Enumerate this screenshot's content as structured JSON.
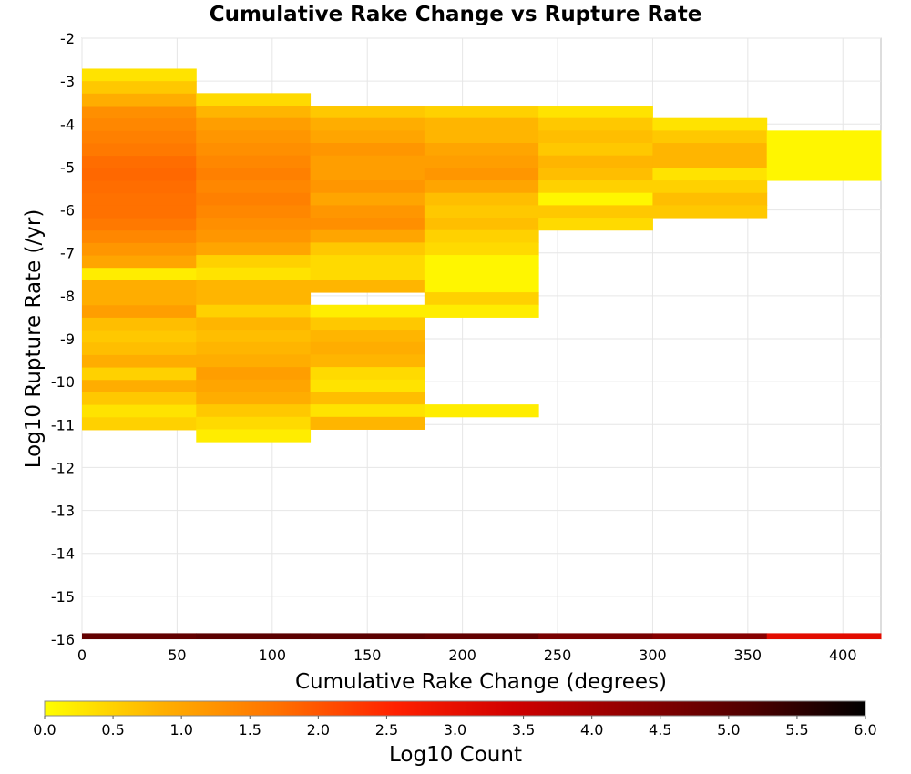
{
  "chart_data": {
    "type": "heatmap",
    "title": "Cumulative Rake Change vs Rupture Rate",
    "xlabel": "Cumulative Rake Change (degrees)",
    "ylabel": "Log10 Rupture Rate (/yr)",
    "xlim": [
      0,
      420
    ],
    "ylim": [
      -16,
      -2
    ],
    "x_ticks": [
      0,
      50,
      100,
      150,
      200,
      250,
      300,
      350,
      400
    ],
    "y_ticks": [
      -2,
      -3,
      -4,
      -5,
      -6,
      -7,
      -8,
      -9,
      -10,
      -11,
      -12,
      -13,
      -14,
      -15,
      -16
    ],
    "grid": true,
    "x_bin_width": 60,
    "y_bin_height": 0.29,
    "colorbar": {
      "label": "Log10 Count",
      "range": [
        0,
        6
      ],
      "ticks": [
        "0.0",
        "0.5",
        "1.0",
        "1.5",
        "2.0",
        "2.5",
        "3.0",
        "3.5",
        "4.0",
        "4.5",
        "5.0",
        "5.5",
        "6.0"
      ],
      "colors": [
        "#ffff00",
        "#ffb000",
        "#ff7000",
        "#ff2000",
        "#d00000",
        "#900000",
        "#500000",
        "#000000"
      ]
    },
    "columns": [
      {
        "x": 0,
        "cells": [
          {
            "y": -2.71,
            "v": 0.3
          },
          {
            "y": -3.0,
            "v": 0.6
          },
          {
            "y": -3.29,
            "v": 0.9
          },
          {
            "y": -3.58,
            "v": 1.3
          },
          {
            "y": -3.87,
            "v": 1.4
          },
          {
            "y": -4.16,
            "v": 1.5
          },
          {
            "y": -4.45,
            "v": 1.6
          },
          {
            "y": -4.74,
            "v": 1.75
          },
          {
            "y": -5.03,
            "v": 1.8
          },
          {
            "y": -5.32,
            "v": 1.75
          },
          {
            "y": -5.61,
            "v": 1.7
          },
          {
            "y": -5.9,
            "v": 1.7
          },
          {
            "y": -6.19,
            "v": 1.6
          },
          {
            "y": -6.48,
            "v": 1.4
          },
          {
            "y": -6.77,
            "v": 1.2
          },
          {
            "y": -7.06,
            "v": 1.0
          },
          {
            "y": -7.35,
            "v": 0.2
          },
          {
            "y": -7.64,
            "v": 0.9
          },
          {
            "y": -7.93,
            "v": 0.9
          },
          {
            "y": -8.22,
            "v": 1.1
          },
          {
            "y": -8.51,
            "v": 0.7
          },
          {
            "y": -8.8,
            "v": 0.6
          },
          {
            "y": -9.09,
            "v": 0.7
          },
          {
            "y": -9.38,
            "v": 0.9
          },
          {
            "y": -9.67,
            "v": 0.5
          },
          {
            "y": -9.96,
            "v": 0.9
          },
          {
            "y": -10.25,
            "v": 0.6
          },
          {
            "y": -10.54,
            "v": 0.3
          },
          {
            "y": -10.83,
            "v": 0.5
          }
        ]
      },
      {
        "x": 60,
        "cells": [
          {
            "y": -3.28,
            "v": 0.4
          },
          {
            "y": -3.57,
            "v": 0.8
          },
          {
            "y": -3.86,
            "v": 1.1
          },
          {
            "y": -4.15,
            "v": 1.2
          },
          {
            "y": -4.44,
            "v": 1.3
          },
          {
            "y": -4.73,
            "v": 1.4
          },
          {
            "y": -5.02,
            "v": 1.5
          },
          {
            "y": -5.31,
            "v": 1.4
          },
          {
            "y": -5.6,
            "v": 1.5
          },
          {
            "y": -5.89,
            "v": 1.4
          },
          {
            "y": -6.18,
            "v": 1.3
          },
          {
            "y": -6.47,
            "v": 1.2
          },
          {
            "y": -6.76,
            "v": 1.0
          },
          {
            "y": -7.05,
            "v": 0.5
          },
          {
            "y": -7.34,
            "v": 0.3
          },
          {
            "y": -7.63,
            "v": 0.8
          },
          {
            "y": -7.92,
            "v": 0.8
          },
          {
            "y": -8.21,
            "v": 0.5
          },
          {
            "y": -8.5,
            "v": 0.8
          },
          {
            "y": -8.79,
            "v": 0.7
          },
          {
            "y": -9.08,
            "v": 0.8
          },
          {
            "y": -9.37,
            "v": 0.9
          },
          {
            "y": -9.66,
            "v": 1.1
          },
          {
            "y": -9.95,
            "v": 1.0
          },
          {
            "y": -10.24,
            "v": 0.9
          },
          {
            "y": -10.53,
            "v": 0.6
          },
          {
            "y": -10.82,
            "v": 0.4
          },
          {
            "y": -11.11,
            "v": 0.2
          }
        ]
      },
      {
        "x": 120,
        "cells": [
          {
            "y": -3.57,
            "v": 0.6
          },
          {
            "y": -3.86,
            "v": 0.9
          },
          {
            "y": -4.15,
            "v": 1.0
          },
          {
            "y": -4.44,
            "v": 1.2
          },
          {
            "y": -4.73,
            "v": 1.1
          },
          {
            "y": -5.02,
            "v": 1.1
          },
          {
            "y": -5.31,
            "v": 1.2
          },
          {
            "y": -5.6,
            "v": 1.0
          },
          {
            "y": -5.89,
            "v": 1.2
          },
          {
            "y": -6.18,
            "v": 1.3
          },
          {
            "y": -6.47,
            "v": 1.0
          },
          {
            "y": -6.76,
            "v": 0.6
          },
          {
            "y": -7.05,
            "v": 0.4
          },
          {
            "y": -7.34,
            "v": 0.4
          },
          {
            "y": -7.63,
            "v": 0.8
          },
          {
            "y": -8.21,
            "v": 0.2
          },
          {
            "y": -8.5,
            "v": 0.6
          },
          {
            "y": -8.79,
            "v": 0.8
          },
          {
            "y": -9.08,
            "v": 0.9
          },
          {
            "y": -9.37,
            "v": 0.8
          },
          {
            "y": -9.66,
            "v": 0.4
          },
          {
            "y": -9.95,
            "v": 0.3
          },
          {
            "y": -10.24,
            "v": 0.7
          },
          {
            "y": -10.53,
            "v": 0.3
          },
          {
            "y": -10.82,
            "v": 0.8
          }
        ]
      },
      {
        "x": 180,
        "cells": [
          {
            "y": -3.57,
            "v": 0.5
          },
          {
            "y": -3.86,
            "v": 0.8
          },
          {
            "y": -4.15,
            "v": 0.8
          },
          {
            "y": -4.44,
            "v": 1.0
          },
          {
            "y": -4.73,
            "v": 1.1
          },
          {
            "y": -5.02,
            "v": 1.2
          },
          {
            "y": -5.31,
            "v": 1.0
          },
          {
            "y": -5.6,
            "v": 0.7
          },
          {
            "y": -5.89,
            "v": 0.6
          },
          {
            "y": -6.18,
            "v": 0.7
          },
          {
            "y": -6.47,
            "v": 0.5
          },
          {
            "y": -6.76,
            "v": 0.4
          },
          {
            "y": -7.05,
            "v": 0.1
          },
          {
            "y": -7.34,
            "v": 0.1
          },
          {
            "y": -7.63,
            "v": 0.1
          },
          {
            "y": -7.92,
            "v": 0.5
          },
          {
            "y": -8.21,
            "v": 0.2
          },
          {
            "y": -10.53,
            "v": 0.2
          }
        ]
      },
      {
        "x": 240,
        "cells": [
          {
            "y": -3.57,
            "v": 0.3
          },
          {
            "y": -3.86,
            "v": 0.6
          },
          {
            "y": -4.15,
            "v": 0.7
          },
          {
            "y": -4.44,
            "v": 0.6
          },
          {
            "y": -4.73,
            "v": 0.8
          },
          {
            "y": -5.02,
            "v": 0.7
          },
          {
            "y": -5.31,
            "v": 0.5
          },
          {
            "y": -5.6,
            "v": 0.1
          },
          {
            "y": -5.89,
            "v": 0.6
          },
          {
            "y": -6.18,
            "v": 0.4
          }
        ]
      },
      {
        "x": 300,
        "cells": [
          {
            "y": -3.86,
            "v": 0.3
          },
          {
            "y": -4.15,
            "v": 0.6
          },
          {
            "y": -4.44,
            "v": 0.8
          },
          {
            "y": -4.73,
            "v": 0.8
          },
          {
            "y": -5.02,
            "v": 0.3
          },
          {
            "y": -5.31,
            "v": 0.5
          },
          {
            "y": -5.6,
            "v": 0.7
          },
          {
            "y": -5.89,
            "v": 0.6
          }
        ]
      },
      {
        "x": 360,
        "cells": [
          {
            "y": -4.15,
            "v": 0.1
          },
          {
            "y": -4.44,
            "v": 0.1
          },
          {
            "y": -4.73,
            "v": 0.1
          },
          {
            "y": -5.02,
            "v": 0.1
          }
        ]
      }
    ],
    "floor_row": {
      "y": -16.0,
      "cells": [
        {
          "x": 0,
          "v": 4.9
        },
        {
          "x": 60,
          "v": 5.0
        },
        {
          "x": 120,
          "v": 5.0
        },
        {
          "x": 180,
          "v": 4.9
        },
        {
          "x": 240,
          "v": 4.6
        },
        {
          "x": 300,
          "v": 4.4
        },
        {
          "x": 360,
          "v": 3.1
        }
      ]
    }
  }
}
